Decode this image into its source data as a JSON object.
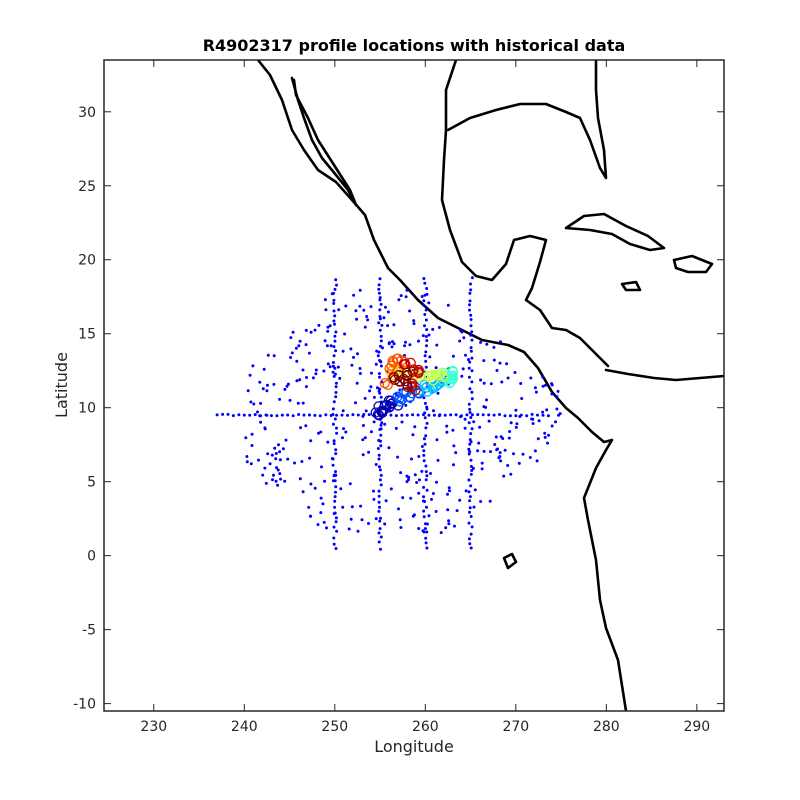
{
  "chart_data": {
    "type": "scatter",
    "title": "R4902317 profile locations with historical data",
    "xlabel": "Longitude",
    "ylabel": "Latitude",
    "xlim": [
      224.5,
      293
    ],
    "ylim": [
      -10.5,
      33.5
    ],
    "xticks": [
      "230",
      "240",
      "250",
      "260",
      "270",
      "280",
      "290"
    ],
    "yticks": [
      "-10",
      "-5",
      "0",
      "5",
      "10",
      "15",
      "20",
      "25",
      "30"
    ],
    "grid": false,
    "colors": {
      "historical": "#0000ff",
      "coastline": "#000000",
      "profile_ramp": [
        "#0000b0",
        "#0050ff",
        "#00c0ff",
        "#40ffd0",
        "#c0ff40",
        "#ffd000",
        "#ff5000",
        "#c00000",
        "#800000"
      ]
    },
    "series": [
      {
        "marker": "dot",
        "meridian_lines": [
          250,
          255,
          260,
          265
        ],
        "parallel_line": 9.5,
        "region": {
          "lon": [
            237,
            278
          ],
          "lat": [
            0.5,
            20
          ]
        }
      },
      {
        "marker": "circle-numbered",
        "profiles": [
          {
            "lon": 254.8,
            "lat": 9.6
          },
          {
            "lon": 255.3,
            "lat": 9.9
          },
          {
            "lon": 255.9,
            "lat": 10.1
          },
          {
            "lon": 256.5,
            "lat": 10.3
          },
          {
            "lon": 257.2,
            "lat": 10.5
          },
          {
            "lon": 258.0,
            "lat": 10.9
          },
          {
            "lon": 258.9,
            "lat": 11.2
          },
          {
            "lon": 259.8,
            "lat": 11.3
          },
          {
            "lon": 260.6,
            "lat": 11.4
          },
          {
            "lon": 261.5,
            "lat": 11.6
          },
          {
            "lon": 262.4,
            "lat": 11.9
          },
          {
            "lon": 263.2,
            "lat": 12.1
          },
          {
            "lon": 262.6,
            "lat": 12.4
          },
          {
            "lon": 261.6,
            "lat": 12.2
          },
          {
            "lon": 260.5,
            "lat": 12.1
          },
          {
            "lon": 259.4,
            "lat": 12.2
          },
          {
            "lon": 258.4,
            "lat": 12.4
          },
          {
            "lon": 257.4,
            "lat": 12.6
          },
          {
            "lon": 256.6,
            "lat": 12.3
          },
          {
            "lon": 256.0,
            "lat": 11.8
          },
          {
            "lon": 256.4,
            "lat": 12.9
          },
          {
            "lon": 257.3,
            "lat": 13.3
          },
          {
            "lon": 258.2,
            "lat": 12.8
          },
          {
            "lon": 259.0,
            "lat": 12.3
          },
          {
            "lon": 258.7,
            "lat": 11.4
          },
          {
            "lon": 257.6,
            "lat": 11.6
          },
          {
            "lon": 256.8,
            "lat": 12.0
          },
          {
            "lon": 257.9,
            "lat": 12.1
          }
        ]
      }
    ]
  }
}
